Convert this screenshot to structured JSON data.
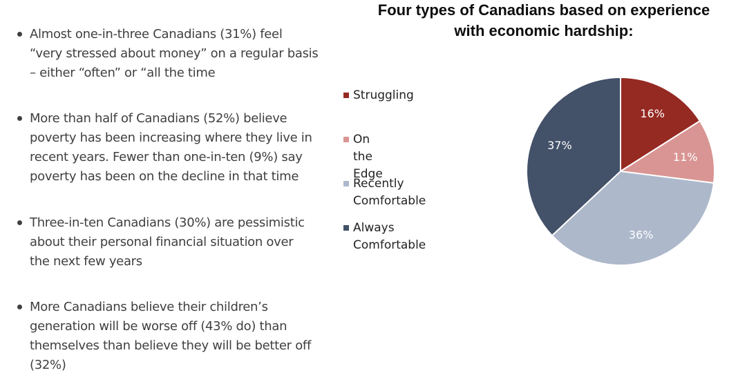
{
  "bullets": [
    "Almost one-in-three Canadians (31%) feel\n“very stressed about money” on a regular basis\n– either “often” or “all the time",
    "More than half of Canadians (52%) believe\npoverty has been increasing where they live in\nrecent years. Fewer than one-in-ten (9%) say\npoverty has been on the decline in that time",
    "Three-in-ten Canadians (30%) are pessimistic\nabout their personal financial situation over\nthe next few years",
    "More Canadians believe their children’s\ngeneration will be worse off (43% do) than\nthemselves than believe they will be better off (32%)"
  ],
  "chart_data": {
    "type": "pie",
    "title": "Four types of Canadians based on experience\nwith economic hardship:",
    "legend_position": "left",
    "slices": [
      {
        "label": "Struggling",
        "value": 16,
        "display": "16%",
        "color": "#952a23"
      },
      {
        "label": "On the Edge",
        "value": 11,
        "display": "11%",
        "color": "#d99593"
      },
      {
        "label": "Recently\nComfortable",
        "value": 36,
        "display": "36%",
        "color": "#adb8cb"
      },
      {
        "label": "Always Comfortable",
        "value": 37,
        "display": "37%",
        "color": "#435169"
      }
    ]
  }
}
